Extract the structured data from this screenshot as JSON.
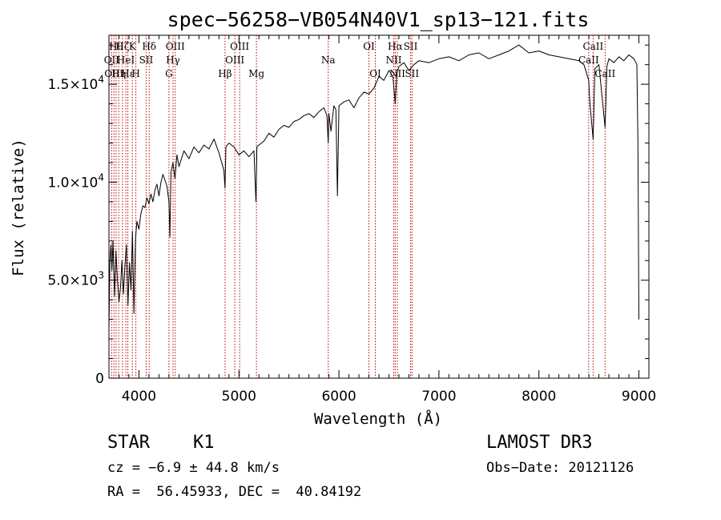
{
  "chart_data": {
    "type": "line",
    "title": "spec−56258−VB054N40V1_sp13−121.fits",
    "xlabel": "Wavelength (Å)",
    "ylabel": "Flux (relative)",
    "xlim": [
      3700,
      9100
    ],
    "ylim": [
      0,
      17500
    ],
    "x_ticks": [
      {
        "value": 4000,
        "label": "4000"
      },
      {
        "value": 5000,
        "label": "5000"
      },
      {
        "value": 6000,
        "label": "6000"
      },
      {
        "value": 7000,
        "label": "7000"
      },
      {
        "value": 8000,
        "label": "8000"
      },
      {
        "value": 9000,
        "label": "9000"
      }
    ],
    "y_ticks": [
      {
        "value": 0,
        "mant": "0",
        "sup": ""
      },
      {
        "value": 5000,
        "mant": "5.0×10",
        "sup": "3"
      },
      {
        "value": 10000,
        "mant": "1.0×10",
        "sup": "4"
      },
      {
        "value": 15000,
        "mant": "1.5×10",
        "sup": "4"
      }
    ],
    "grid": false,
    "series": [
      {
        "color": "#000000",
        "x": [
          3700,
          3710,
          3720,
          3730,
          3740,
          3755,
          3770,
          3785,
          3800,
          3815,
          3830,
          3845,
          3860,
          3875,
          3890,
          3905,
          3920,
          3935,
          3950,
          3965,
          3980,
          3990,
          4000,
          4020,
          4040,
          4060,
          4080,
          4100,
          4120,
          4140,
          4160,
          4180,
          4200,
          4220,
          4240,
          4260,
          4280,
          4300,
          4310,
          4320,
          4340,
          4360,
          4380,
          4400,
          4450,
          4500,
          4550,
          4600,
          4650,
          4700,
          4750,
          4800,
          4850,
          4861,
          4870,
          4900,
          4950,
          5000,
          5050,
          5100,
          5150,
          5170,
          5180,
          5200,
          5250,
          5300,
          5350,
          5400,
          5450,
          5500,
          5550,
          5600,
          5650,
          5700,
          5750,
          5800,
          5850,
          5880,
          5893,
          5900,
          5920,
          5950,
          5970,
          5985,
          6000,
          6050,
          6100,
          6150,
          6200,
          6250,
          6300,
          6350,
          6400,
          6450,
          6500,
          6540,
          6563,
          6580,
          6600,
          6650,
          6700,
          6750,
          6800,
          6900,
          7000,
          7100,
          7200,
          7300,
          7400,
          7500,
          7600,
          7700,
          7800,
          7900,
          8000,
          8100,
          8200,
          8300,
          8400,
          8450,
          8498,
          8510,
          8542,
          8560,
          8600,
          8662,
          8680,
          8700,
          8750,
          8800,
          8850,
          8900,
          8950,
          8980,
          8990,
          9000
        ],
        "y": [
          2500,
          6000,
          6800,
          5500,
          7000,
          4200,
          6500,
          5000,
          3900,
          4600,
          6000,
          4300,
          5800,
          6800,
          3700,
          5900,
          4500,
          7500,
          3300,
          7100,
          8000,
          7800,
          7600,
          8400,
          8800,
          8700,
          9200,
          8900,
          9400,
          9000,
          9600,
          9900,
          9300,
          10000,
          10400,
          10100,
          9800,
          9000,
          7200,
          10500,
          11000,
          10200,
          11400,
          10800,
          11600,
          11200,
          11800,
          11500,
          11900,
          11700,
          12200,
          11500,
          10600,
          9700,
          11800,
          12000,
          11800,
          11400,
          11600,
          11300,
          11600,
          9000,
          11800,
          11900,
          12100,
          12500,
          12300,
          12700,
          12900,
          12800,
          13100,
          13200,
          13400,
          13500,
          13300,
          13600,
          13800,
          13400,
          12000,
          13500,
          12600,
          13900,
          13700,
          9300,
          13900,
          14100,
          14200,
          13800,
          14300,
          14600,
          14500,
          14800,
          15400,
          15200,
          15700,
          15400,
          14000,
          15600,
          15900,
          16100,
          15700,
          16000,
          16200,
          16100,
          16300,
          16400,
          16200,
          16500,
          16600,
          16300,
          16500,
          16700,
          17000,
          16600,
          16700,
          16500,
          16400,
          16300,
          16200,
          16000,
          15200,
          14000,
          12200,
          15800,
          16000,
          12800,
          15900,
          16300,
          16100,
          16400,
          16200,
          16500,
          16300,
          16000,
          12000,
          3000
        ]
      }
    ],
    "line_markers": [
      {
        "wavelength": 3727,
        "label": "OII",
        "row": 2
      },
      {
        "wavelength": 3750,
        "label": "OIII",
        "row": 3
      },
      {
        "wavelength": 3771,
        "label": "Hθ",
        "row": 1
      },
      {
        "wavelength": 3798,
        "label": "Hη",
        "row": 3
      },
      {
        "wavelength": 3835,
        "label": "Hζ",
        "row": 1
      },
      {
        "wavelength": 3869,
        "label": "HeI",
        "row": 2
      },
      {
        "wavelength": 3889,
        "label": "Hε",
        "row": 3
      },
      {
        "wavelength": 3934,
        "label": "K",
        "row": 1
      },
      {
        "wavelength": 3969,
        "label": "H",
        "row": 3
      },
      {
        "wavelength": 4072,
        "label": "SII",
        "row": 2
      },
      {
        "wavelength": 4102,
        "label": "Hδ",
        "row": 1
      },
      {
        "wavelength": 4300,
        "label": "G",
        "row": 3
      },
      {
        "wavelength": 4341,
        "label": "Hγ",
        "row": 2
      },
      {
        "wavelength": 4363,
        "label": "OIII",
        "row": 1
      },
      {
        "wavelength": 4861,
        "label": "Hβ",
        "row": 3
      },
      {
        "wavelength": 4959,
        "label": "OIII",
        "row": 2
      },
      {
        "wavelength": 5007,
        "label": "OIII",
        "row": 1
      },
      {
        "wavelength": 5175,
        "label": "Mg",
        "row": 3
      },
      {
        "wavelength": 5893,
        "label": "Na",
        "row": 2
      },
      {
        "wavelength": 6300,
        "label": "OI",
        "row": 1
      },
      {
        "wavelength": 6364,
        "label": "OI",
        "row": 3
      },
      {
        "wavelength": 6548,
        "label": "NII",
        "row": 2
      },
      {
        "wavelength": 6563,
        "label": "Hα",
        "row": 1
      },
      {
        "wavelength": 6584,
        "label": "NII",
        "row": 3
      },
      {
        "wavelength": 6717,
        "label": "SII",
        "row": 1
      },
      {
        "wavelength": 6731,
        "label": "SII",
        "row": 3
      },
      {
        "wavelength": 8498,
        "label": "CaII",
        "row": 2
      },
      {
        "wavelength": 8542,
        "label": "CaII",
        "row": 1
      },
      {
        "wavelength": 8662,
        "label": "CaII",
        "row": 3
      }
    ],
    "marker_color": "#c00000"
  },
  "info": {
    "class": "STAR",
    "subclass": "K1",
    "survey": "LAMOST DR3",
    "cz": "cz = −6.9 ± 44.8 km/s",
    "obs_date": "Obs−Date: 20121126",
    "coords": "RA =  56.45933, DEC =  40.84192"
  }
}
